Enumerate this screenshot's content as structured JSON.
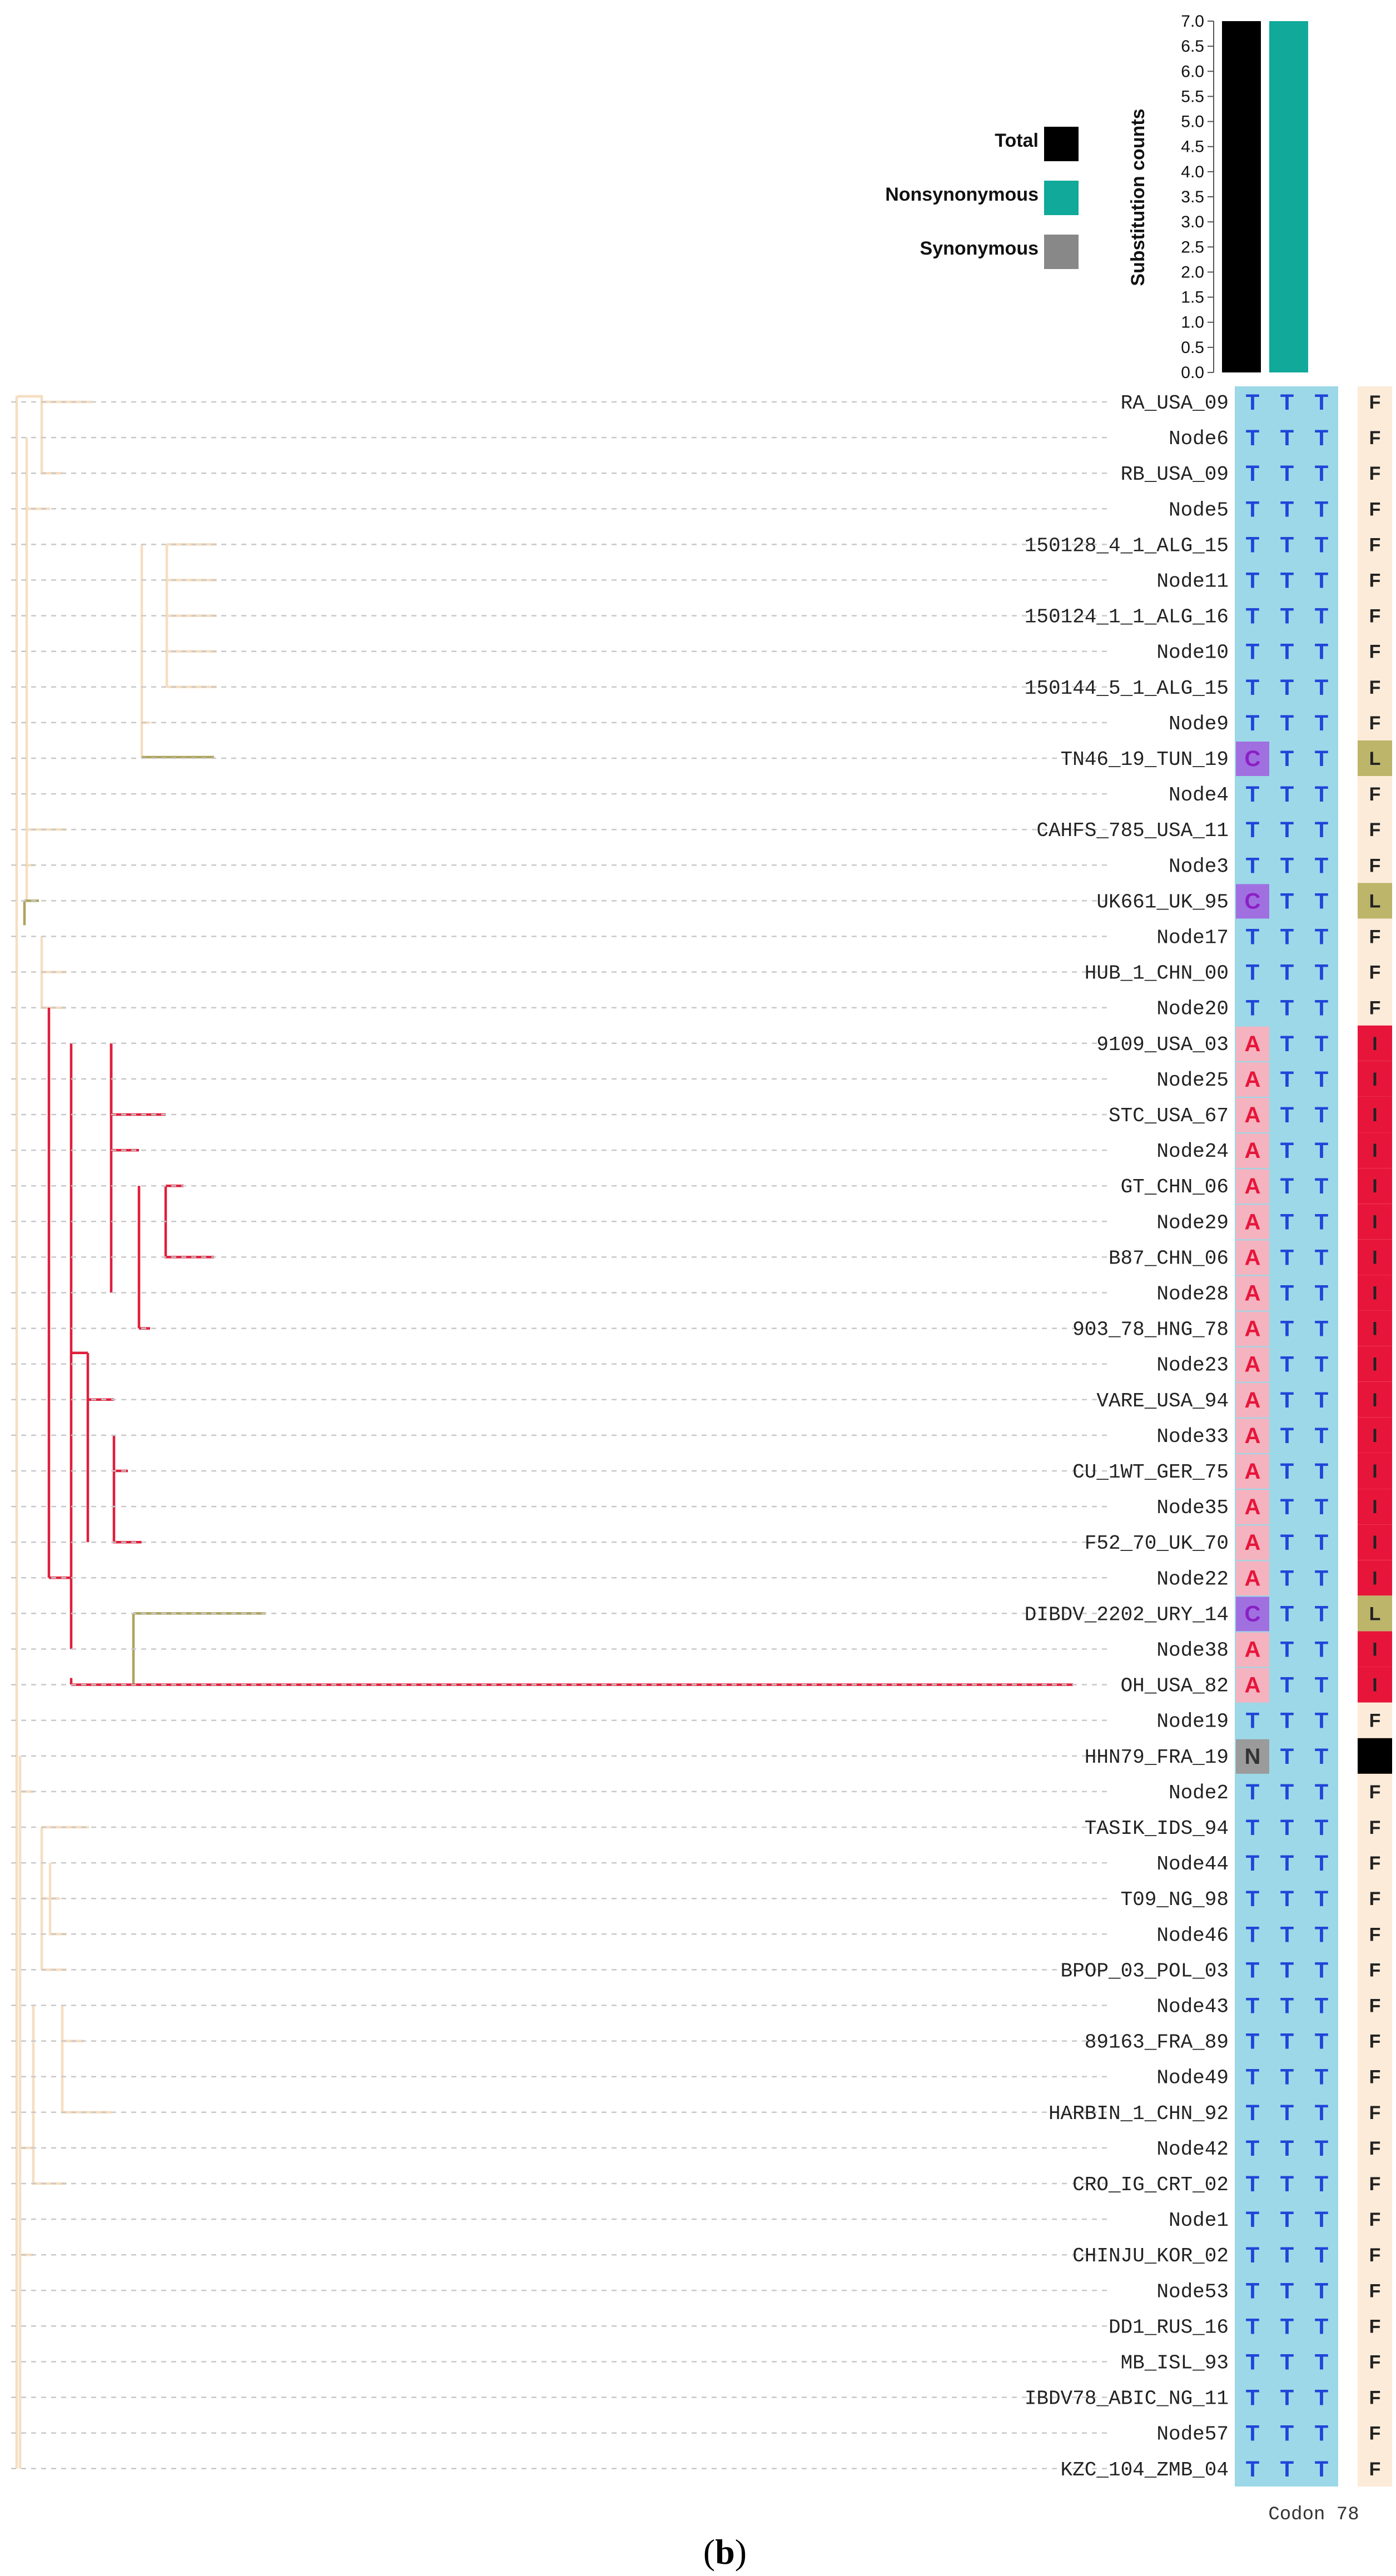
{
  "legend": [
    {
      "label": "Total",
      "color": "#000000"
    },
    {
      "label": "Nonsynonymous",
      "color": "#10A99A"
    },
    {
      "label": "Synonymous",
      "color": "#888888"
    }
  ],
  "chart_data": {
    "type": "bar",
    "ylabel": "Substitution counts",
    "ylim": [
      0,
      7
    ],
    "ticks": [
      "0.0",
      "0.5",
      "1.0",
      "1.5",
      "2.0",
      "2.5",
      "3.0",
      "3.5",
      "4.0",
      "4.5",
      "5.0",
      "5.5",
      "6.0",
      "6.5",
      "7.0"
    ],
    "categories": [
      "Total",
      "Nonsynonymous",
      "Synonymous"
    ],
    "values": [
      7,
      7,
      0
    ]
  },
  "codon_label": "Codon 78",
  "panel_label": "(b)",
  "bold_letter": "b",
  "colors": {
    "codon_bg": "#9CD8E8",
    "aa_bg_F": "#FBEBD8",
    "aa_bg_I": "#E8153A",
    "aa_bg_L": "#BDB56A",
    "aa_bg_missing": "#000000",
    "nt_bg_A": "#F4B3BF",
    "nt_bg_C": "#A070E0",
    "nt_bg_N": "#9B9B9B",
    "branch_default": "#F6DEC0",
    "branch_red": "#E01E3C",
    "branch_olive": "#ACA45E",
    "dashed": "#C8C8C8"
  },
  "taxa": [
    {
      "name": "RA_USA_09",
      "codon": [
        "T",
        "T",
        "T"
      ],
      "aa": "F"
    },
    {
      "name": "Node6",
      "codon": [
        "T",
        "T",
        "T"
      ],
      "aa": "F"
    },
    {
      "name": "RB_USA_09",
      "codon": [
        "T",
        "T",
        "T"
      ],
      "aa": "F"
    },
    {
      "name": "Node5",
      "codon": [
        "T",
        "T",
        "T"
      ],
      "aa": "F"
    },
    {
      "name": "150128_4_1_ALG_15",
      "codon": [
        "T",
        "T",
        "T"
      ],
      "aa": "F"
    },
    {
      "name": "Node11",
      "codon": [
        "T",
        "T",
        "T"
      ],
      "aa": "F"
    },
    {
      "name": "150124_1_1_ALG_16",
      "codon": [
        "T",
        "T",
        "T"
      ],
      "aa": "F"
    },
    {
      "name": "Node10",
      "codon": [
        "T",
        "T",
        "T"
      ],
      "aa": "F"
    },
    {
      "name": "150144_5_1_ALG_15",
      "codon": [
        "T",
        "T",
        "T"
      ],
      "aa": "F"
    },
    {
      "name": "Node9",
      "codon": [
        "T",
        "T",
        "T"
      ],
      "aa": "F"
    },
    {
      "name": "TN46_19_TUN_19",
      "codon": [
        "C",
        "T",
        "T"
      ],
      "aa": "L"
    },
    {
      "name": "Node4",
      "codon": [
        "T",
        "T",
        "T"
      ],
      "aa": "F"
    },
    {
      "name": "CAHFS_785_USA_11",
      "codon": [
        "T",
        "T",
        "T"
      ],
      "aa": "F"
    },
    {
      "name": "Node3",
      "codon": [
        "T",
        "T",
        "T"
      ],
      "aa": "F"
    },
    {
      "name": "UK661_UK_95",
      "codon": [
        "C",
        "T",
        "T"
      ],
      "aa": "L"
    },
    {
      "name": "Node17",
      "codon": [
        "T",
        "T",
        "T"
      ],
      "aa": "F"
    },
    {
      "name": "HUB_1_CHN_00",
      "codon": [
        "T",
        "T",
        "T"
      ],
      "aa": "F"
    },
    {
      "name": "Node20",
      "codon": [
        "T",
        "T",
        "T"
      ],
      "aa": "F"
    },
    {
      "name": "9109_USA_03",
      "codon": [
        "A",
        "T",
        "T"
      ],
      "aa": "I"
    },
    {
      "name": "Node25",
      "codon": [
        "A",
        "T",
        "T"
      ],
      "aa": "I"
    },
    {
      "name": "STC_USA_67",
      "codon": [
        "A",
        "T",
        "T"
      ],
      "aa": "I"
    },
    {
      "name": "Node24",
      "codon": [
        "A",
        "T",
        "T"
      ],
      "aa": "I"
    },
    {
      "name": "GT_CHN_06",
      "codon": [
        "A",
        "T",
        "T"
      ],
      "aa": "I"
    },
    {
      "name": "Node29",
      "codon": [
        "A",
        "T",
        "T"
      ],
      "aa": "I"
    },
    {
      "name": "B87_CHN_06",
      "codon": [
        "A",
        "T",
        "T"
      ],
      "aa": "I"
    },
    {
      "name": "Node28",
      "codon": [
        "A",
        "T",
        "T"
      ],
      "aa": "I"
    },
    {
      "name": "903_78_HNG_78",
      "codon": [
        "A",
        "T",
        "T"
      ],
      "aa": "I"
    },
    {
      "name": "Node23",
      "codon": [
        "A",
        "T",
        "T"
      ],
      "aa": "I"
    },
    {
      "name": "VARE_USA_94",
      "codon": [
        "A",
        "T",
        "T"
      ],
      "aa": "I"
    },
    {
      "name": "Node33",
      "codon": [
        "A",
        "T",
        "T"
      ],
      "aa": "I"
    },
    {
      "name": "CU_1WT_GER_75",
      "codon": [
        "A",
        "T",
        "T"
      ],
      "aa": "I"
    },
    {
      "name": "Node35",
      "codon": [
        "A",
        "T",
        "T"
      ],
      "aa": "I"
    },
    {
      "name": "F52_70_UK_70",
      "codon": [
        "A",
        "T",
        "T"
      ],
      "aa": "I"
    },
    {
      "name": "Node22",
      "codon": [
        "A",
        "T",
        "T"
      ],
      "aa": "I"
    },
    {
      "name": "DIBDV_2202_URY_14",
      "codon": [
        "C",
        "T",
        "T"
      ],
      "aa": "L"
    },
    {
      "name": "Node38",
      "codon": [
        "A",
        "T",
        "T"
      ],
      "aa": "I"
    },
    {
      "name": "OH_USA_82",
      "codon": [
        "A",
        "T",
        "T"
      ],
      "aa": "I"
    },
    {
      "name": "Node19",
      "codon": [
        "T",
        "T",
        "T"
      ],
      "aa": "F"
    },
    {
      "name": "HHN79_FRA_19",
      "codon": [
        "N",
        "T",
        "T"
      ],
      "aa": ""
    },
    {
      "name": "Node2",
      "codon": [
        "T",
        "T",
        "T"
      ],
      "aa": "F"
    },
    {
      "name": "TASIK_IDS_94",
      "codon": [
        "T",
        "T",
        "T"
      ],
      "aa": "F"
    },
    {
      "name": "Node44",
      "codon": [
        "T",
        "T",
        "T"
      ],
      "aa": "F"
    },
    {
      "name": "T09_NG_98",
      "codon": [
        "T",
        "T",
        "T"
      ],
      "aa": "F"
    },
    {
      "name": "Node46",
      "codon": [
        "T",
        "T",
        "T"
      ],
      "aa": "F"
    },
    {
      "name": "BPOP_03_POL_03",
      "codon": [
        "T",
        "T",
        "T"
      ],
      "aa": "F"
    },
    {
      "name": "Node43",
      "codon": [
        "T",
        "T",
        "T"
      ],
      "aa": "F"
    },
    {
      "name": "89163_FRA_89",
      "codon": [
        "T",
        "T",
        "T"
      ],
      "aa": "F"
    },
    {
      "name": "Node49",
      "codon": [
        "T",
        "T",
        "T"
      ],
      "aa": "F"
    },
    {
      "name": "HARBIN_1_CHN_92",
      "codon": [
        "T",
        "T",
        "T"
      ],
      "aa": "F"
    },
    {
      "name": "Node42",
      "codon": [
        "T",
        "T",
        "T"
      ],
      "aa": "F"
    },
    {
      "name": "CRO_IG_CRT_02",
      "codon": [
        "T",
        "T",
        "T"
      ],
      "aa": "F"
    },
    {
      "name": "Node1",
      "codon": [
        "T",
        "T",
        "T"
      ],
      "aa": "F"
    },
    {
      "name": "CHINJU_KOR_02",
      "codon": [
        "T",
        "T",
        "T"
      ],
      "aa": "F"
    },
    {
      "name": "Node53",
      "codon": [
        "T",
        "T",
        "T"
      ],
      "aa": "F"
    },
    {
      "name": "DD1_RUS_16",
      "codon": [
        "T",
        "T",
        "T"
      ],
      "aa": "F"
    },
    {
      "name": "MB_ISL_93",
      "codon": [
        "T",
        "T",
        "T"
      ],
      "aa": "F"
    },
    {
      "name": "IBDV78_ABIC_NG_11",
      "codon": [
        "T",
        "T",
        "T"
      ],
      "aa": "F"
    },
    {
      "name": "Node57",
      "codon": [
        "T",
        "T",
        "T"
      ],
      "aa": "F"
    },
    {
      "name": "KZC_104_ZMB_04",
      "codon": [
        "T",
        "T",
        "T"
      ],
      "aa": "F"
    }
  ]
}
